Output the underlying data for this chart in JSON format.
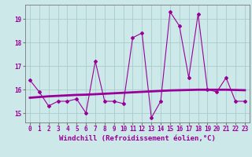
{
  "x": [
    0,
    1,
    2,
    3,
    4,
    5,
    6,
    7,
    8,
    9,
    10,
    11,
    12,
    13,
    14,
    15,
    16,
    17,
    18,
    19,
    20,
    21,
    22,
    23
  ],
  "windchill": [
    16.4,
    15.9,
    15.3,
    15.5,
    15.5,
    15.6,
    15.0,
    17.2,
    15.5,
    15.5,
    15.4,
    18.2,
    18.4,
    14.8,
    15.5,
    19.3,
    18.7,
    16.5,
    19.2,
    16.0,
    15.9,
    16.5,
    15.5,
    15.5
  ],
  "trend": [
    15.65,
    15.68,
    15.71,
    15.73,
    15.75,
    15.77,
    15.78,
    15.8,
    15.82,
    15.84,
    15.86,
    15.88,
    15.9,
    15.92,
    15.94,
    15.96,
    15.97,
    15.98,
    15.99,
    15.99,
    15.99,
    15.99,
    15.98,
    15.97
  ],
  "ylim": [
    14.6,
    19.6
  ],
  "yticks": [
    15,
    16,
    17,
    18,
    19
  ],
  "xlabel": "Windchill (Refroidissement éolien,°C)",
  "line_color": "#990099",
  "bg_color": "#cce8e8",
  "grid_color": "#aacccc",
  "tick_fontsize": 5.5,
  "xlabel_fontsize": 6.5
}
